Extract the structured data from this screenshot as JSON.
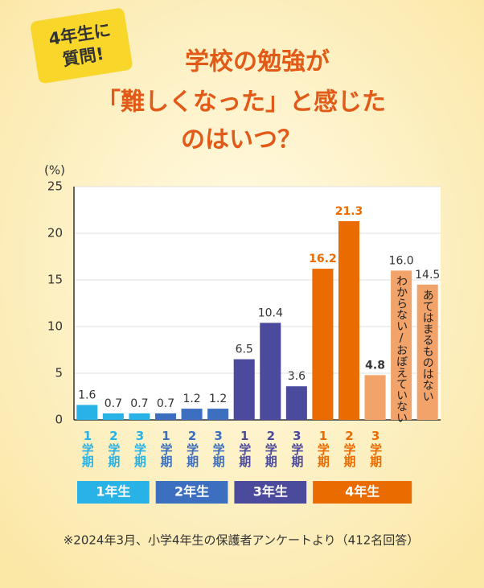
{
  "chart_data": {
    "type": "bar",
    "badge": [
      "4年生に",
      "質問!"
    ],
    "title": [
      "学校の勉強が",
      "「難しくなった」と感じた",
      "のはいつ？"
    ],
    "y_label": "(%)",
    "ylim": [
      0,
      25
    ],
    "yticks": [
      0,
      5,
      10,
      15,
      20,
      25
    ],
    "grid": true,
    "groups": [
      {
        "name": "1年生",
        "color": "#29b2e6",
        "categories": [
          "1学期",
          "2学期",
          "3学期"
        ],
        "values": [
          1.6,
          0.7,
          0.7
        ],
        "value_labels": [
          "1.6",
          "0.7",
          "0.7"
        ],
        "colors": [
          "#29b2e6",
          "#29b2e6",
          "#29b2e6"
        ]
      },
      {
        "name": "2年生",
        "color": "#3c6fbf",
        "categories": [
          "1学期",
          "2学期",
          "3学期"
        ],
        "values": [
          0.7,
          1.2,
          1.2
        ],
        "value_labels": [
          "0.7",
          "1.2",
          "1.2"
        ],
        "colors": [
          "#3c6fbf",
          "#3c6fbf",
          "#3c6fbf"
        ]
      },
      {
        "name": "3年生",
        "color": "#4c4a9c",
        "categories": [
          "1学期",
          "2学期",
          "3学期"
        ],
        "values": [
          6.5,
          10.4,
          3.6
        ],
        "value_labels": [
          "6.5",
          "10.4",
          "3.6"
        ],
        "colors": [
          "#4c4a9c",
          "#4c4a9c",
          "#4c4a9c"
        ]
      },
      {
        "name": "4年生",
        "color": "#ea6b00",
        "categories": [
          "1学期",
          "2学期",
          "3学期"
        ],
        "values": [
          16.2,
          21.3,
          4.8
        ],
        "value_labels": [
          "16.2",
          "21.3",
          "4.8"
        ],
        "colors": [
          "#ea6b00",
          "#ea6b00",
          "#f2a36a"
        ],
        "value_label_colors": [
          "#ea6b00",
          "#ea6b00",
          "#333333"
        ]
      }
    ],
    "others": {
      "categories": [
        "わからない/おぼえていない",
        "あてはまるものはない"
      ],
      "values": [
        16.0,
        14.5
      ],
      "value_labels": [
        "16.0",
        "14.5"
      ],
      "color": "#f2a36a"
    },
    "note": "※2024年3月、小学4年生の保護者アンケートより（412名回答）"
  }
}
